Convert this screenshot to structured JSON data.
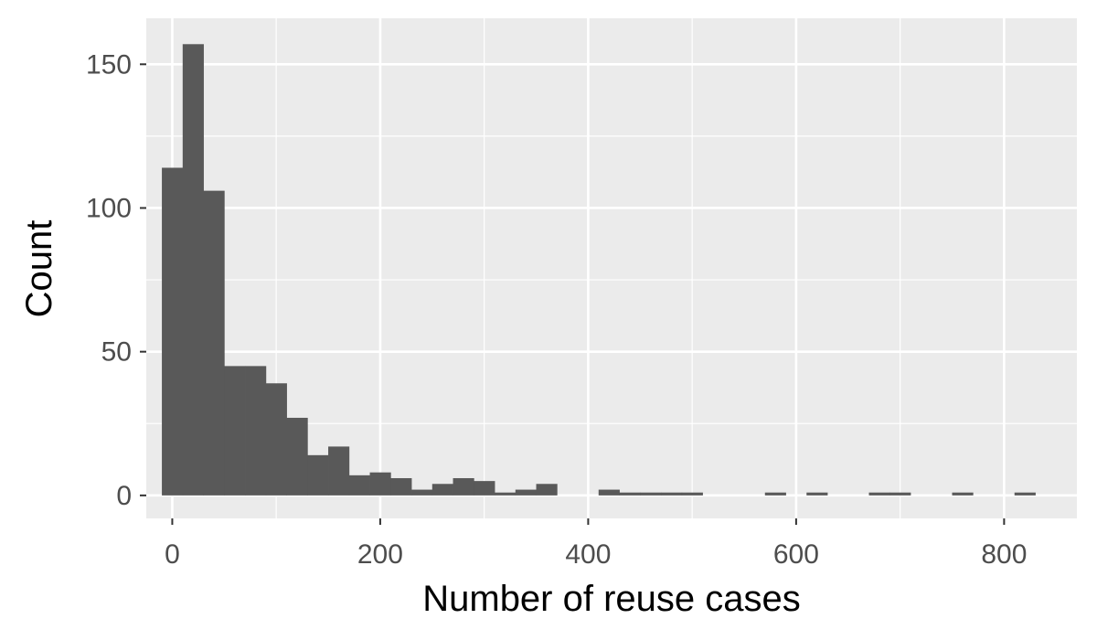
{
  "chart_data": {
    "type": "bar",
    "subtype": "histogram",
    "title": "",
    "xlabel": "Number of reuse cases",
    "ylabel": "Count",
    "xlim": [
      -25,
      870
    ],
    "ylim": [
      -8,
      166
    ],
    "x_ticks": [
      0,
      200,
      400,
      600,
      800
    ],
    "x_tick_labels": [
      "0",
      "200",
      "400",
      "600",
      "800"
    ],
    "y_ticks": [
      0,
      50,
      100,
      150
    ],
    "y_tick_labels": [
      "0",
      "50",
      "100",
      "150"
    ],
    "bin_width": 20,
    "bins_start": [
      -10,
      10,
      30,
      50,
      70,
      90,
      110,
      130,
      150,
      170,
      190,
      210,
      230,
      250,
      270,
      290,
      310,
      330,
      350,
      370,
      390,
      410,
      430,
      450,
      470,
      490,
      510,
      530,
      550,
      570,
      590,
      610,
      630,
      650,
      670,
      690,
      710,
      730,
      750,
      770,
      790,
      810
    ],
    "counts": [
      114,
      157,
      106,
      45,
      45,
      39,
      27,
      14,
      17,
      7,
      8,
      6,
      2,
      4,
      6,
      5,
      1,
      2,
      4,
      0,
      0,
      2,
      1,
      1,
      1,
      1,
      0,
      0,
      0,
      1,
      0,
      1,
      0,
      0,
      1,
      1,
      0,
      0,
      1,
      0,
      0,
      1
    ],
    "grid": true,
    "legend": "none",
    "colors": {
      "bar": "#595959",
      "panel": "#ebebeb",
      "grid": "#ffffff",
      "tick_text": "#4d4d4d",
      "axis_title": "#000000"
    }
  }
}
